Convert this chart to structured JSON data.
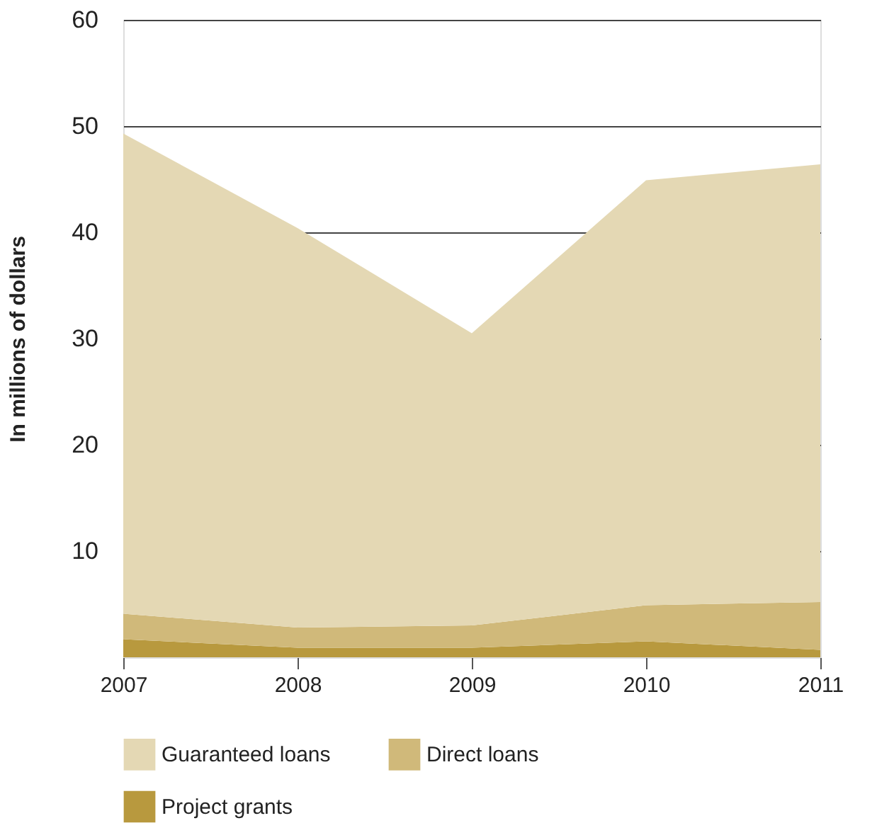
{
  "chart_data": {
    "type": "area",
    "stacked": true,
    "ylabel": "In millions of dollars",
    "x": [
      2007,
      2008,
      2009,
      2010,
      2011
    ],
    "xlim": [
      2007,
      2011
    ],
    "xticks": [
      2007,
      2008,
      2009,
      2010,
      2011
    ],
    "ylim": [
      0,
      60
    ],
    "yticks": [
      10,
      20,
      30,
      40,
      50,
      60
    ],
    "grid": "y",
    "legend": "bottom",
    "series": [
      {
        "name": "Project grants",
        "color": "#b8993e",
        "values": [
          1.7,
          0.9,
          0.9,
          1.5,
          0.7
        ]
      },
      {
        "name": "Direct loans",
        "color": "#d0b97a",
        "values": [
          2.4,
          1.9,
          2.1,
          3.4,
          4.5
        ]
      },
      {
        "name": "Guaranteed loans",
        "color": "#e4d8b4",
        "values": [
          45.2,
          37.6,
          27.5,
          40.0,
          41.2
        ]
      }
    ]
  }
}
